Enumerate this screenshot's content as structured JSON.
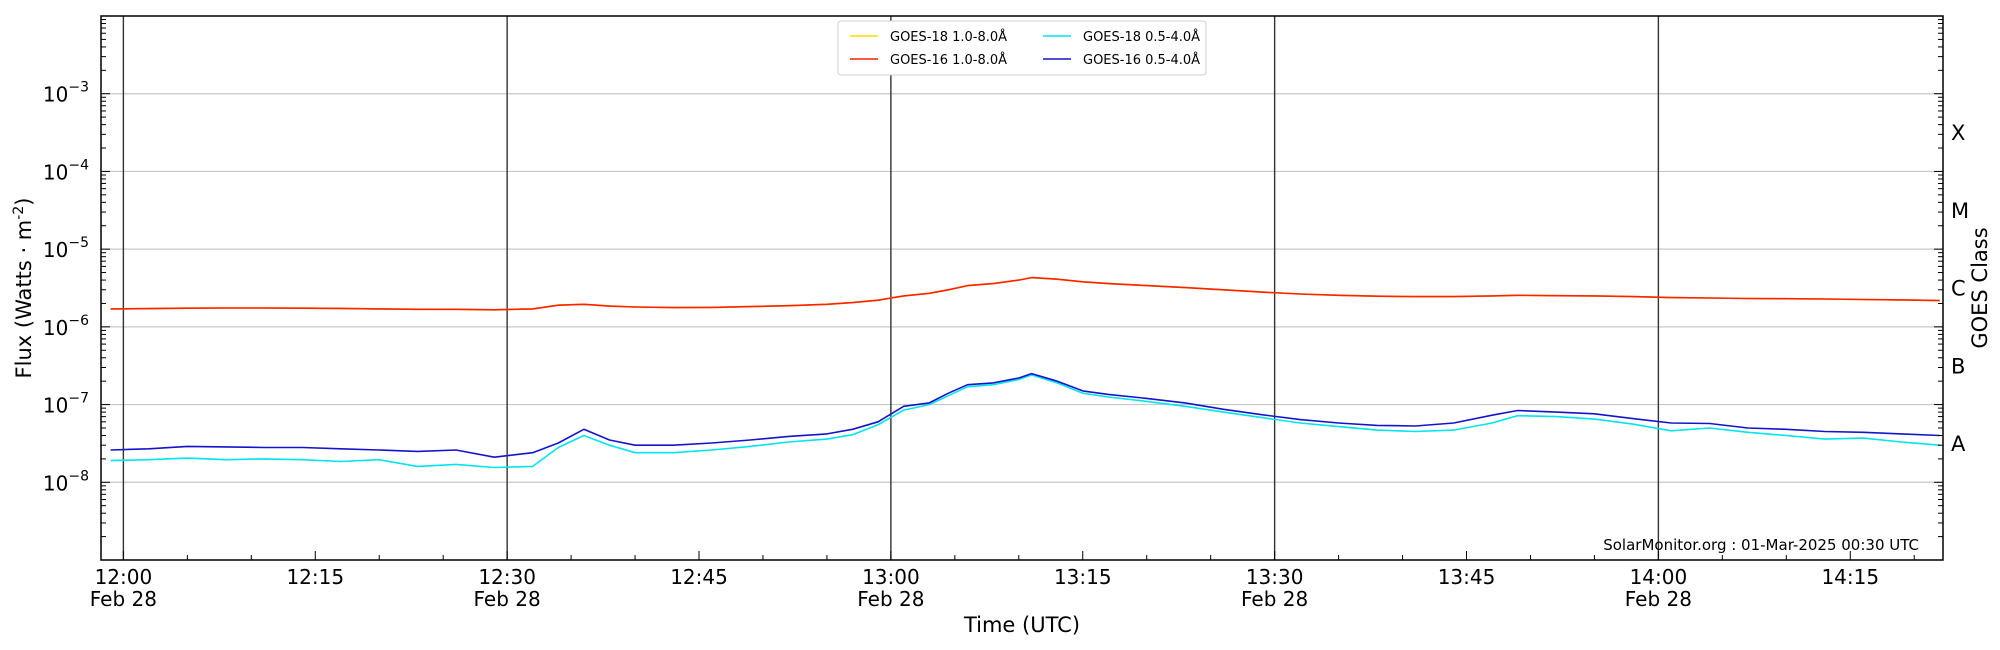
{
  "chart_data": {
    "type": "line",
    "title": "",
    "xlabel": "Time (UTC)",
    "ylabel": "Flux (Watts · m",
    "ylabel_sup": "-2",
    "ylabel_close": ")",
    "y2label": "GOES Class",
    "yscale": "log",
    "ylim": [
      1e-09,
      0.01
    ],
    "xlim": [
      "12:00",
      "14:22"
    ],
    "x_unit": "minutes after 12:00 UTC, 28-Feb-2025",
    "grid": "horizontal at each decade",
    "legend_position": "top-center",
    "credit": "SolarMonitor.org : 01-Mar-2025 00:30 UTC",
    "y_ticks": [
      {
        "value": 1e-08,
        "base": "10",
        "exp": "−8"
      },
      {
        "value": 1e-07,
        "base": "10",
        "exp": "−7"
      },
      {
        "value": 1e-06,
        "base": "10",
        "exp": "−6"
      },
      {
        "value": 1e-05,
        "base": "10",
        "exp": "−5"
      },
      {
        "value": 0.0001,
        "base": "10",
        "exp": "−4"
      },
      {
        "value": 0.001,
        "base": "10",
        "exp": "−3"
      }
    ],
    "x_ticks": [
      {
        "x": 0,
        "time": "12:00",
        "date": "Feb 28"
      },
      {
        "x": 15,
        "time": "12:15",
        "date": ""
      },
      {
        "x": 30,
        "time": "12:30",
        "date": "Feb 28"
      },
      {
        "x": 45,
        "time": "12:45",
        "date": ""
      },
      {
        "x": 60,
        "time": "13:00",
        "date": "Feb 28"
      },
      {
        "x": 75,
        "time": "13:15",
        "date": ""
      },
      {
        "x": 90,
        "time": "13:30",
        "date": "Feb 28"
      },
      {
        "x": 105,
        "time": "13:45",
        "date": ""
      },
      {
        "x": 120,
        "time": "14:00",
        "date": "Feb 28"
      },
      {
        "x": 135,
        "time": "14:15",
        "date": ""
      }
    ],
    "vlines": [
      0,
      30,
      60,
      90,
      120
    ],
    "goes_classes": [
      {
        "label": "A",
        "value": 3.2e-08
      },
      {
        "label": "B",
        "value": 3.2e-07
      },
      {
        "label": "C",
        "value": 3.2e-06
      },
      {
        "label": "M",
        "value": 3.2e-05
      },
      {
        "label": "X",
        "value": 0.00032
      }
    ],
    "x": [
      -1,
      2,
      5,
      8,
      11,
      14,
      17,
      20,
      23,
      26,
      29,
      32,
      34,
      36,
      38,
      40,
      43,
      46,
      49,
      52,
      55,
      57,
      59,
      61,
      63,
      64.5,
      66,
      68,
      70,
      71,
      73,
      75,
      77,
      80,
      83,
      86,
      89,
      92,
      95,
      98,
      101,
      104,
      107,
      109,
      112,
      115,
      118,
      121,
      124,
      127,
      130,
      133,
      136,
      139,
      142
    ],
    "series": [
      {
        "name": "GOES-18 1.0-8.0Å",
        "color": "#ffd700",
        "values": [
          1.7e-06,
          1.72e-06,
          1.74e-06,
          1.75e-06,
          1.75e-06,
          1.74e-06,
          1.73e-06,
          1.7e-06,
          1.68e-06,
          1.68e-06,
          1.66e-06,
          1.7e-06,
          1.9e-06,
          1.95e-06,
          1.85e-06,
          1.8e-06,
          1.77e-06,
          1.78e-06,
          1.82e-06,
          1.87e-06,
          1.95e-06,
          2.05e-06,
          2.2e-06,
          2.5e-06,
          2.7e-06,
          3e-06,
          3.4e-06,
          3.6e-06,
          4e-06,
          4.3e-06,
          4.1e-06,
          3.8e-06,
          3.6e-06,
          3.4e-06,
          3.2e-06,
          3e-06,
          2.8e-06,
          2.65e-06,
          2.55e-06,
          2.48e-06,
          2.45e-06,
          2.45e-06,
          2.5e-06,
          2.55e-06,
          2.52e-06,
          2.5e-06,
          2.45e-06,
          2.38e-06,
          2.35e-06,
          2.32e-06,
          2.3e-06,
          2.28e-06,
          2.25e-06,
          2.22e-06,
          2.18e-06
        ]
      },
      {
        "name": "GOES-16 1.0-8.0Å",
        "color": "#ff2200",
        "values": [
          1.7e-06,
          1.72e-06,
          1.74e-06,
          1.75e-06,
          1.75e-06,
          1.74e-06,
          1.73e-06,
          1.7e-06,
          1.68e-06,
          1.68e-06,
          1.66e-06,
          1.7e-06,
          1.9e-06,
          1.95e-06,
          1.85e-06,
          1.8e-06,
          1.77e-06,
          1.78e-06,
          1.82e-06,
          1.87e-06,
          1.95e-06,
          2.05e-06,
          2.2e-06,
          2.5e-06,
          2.7e-06,
          3e-06,
          3.4e-06,
          3.6e-06,
          4e-06,
          4.3e-06,
          4.1e-06,
          3.8e-06,
          3.6e-06,
          3.4e-06,
          3.2e-06,
          3e-06,
          2.8e-06,
          2.65e-06,
          2.55e-06,
          2.48e-06,
          2.45e-06,
          2.45e-06,
          2.5e-06,
          2.55e-06,
          2.52e-06,
          2.5e-06,
          2.45e-06,
          2.38e-06,
          2.35e-06,
          2.32e-06,
          2.3e-06,
          2.28e-06,
          2.25e-06,
          2.22e-06,
          2.18e-06
        ]
      },
      {
        "name": "GOES-18 0.5-4.0Å",
        "color": "#00e5ee",
        "values": [
          1.9e-08,
          1.95e-08,
          2.05e-08,
          1.95e-08,
          2e-08,
          1.95e-08,
          1.85e-08,
          1.95e-08,
          1.6e-08,
          1.7e-08,
          1.55e-08,
          1.6e-08,
          2.8e-08,
          4e-08,
          3e-08,
          2.4e-08,
          2.4e-08,
          2.6e-08,
          2.9e-08,
          3.3e-08,
          3.6e-08,
          4.1e-08,
          5.5e-08,
          8.5e-08,
          1e-07,
          1.3e-07,
          1.7e-07,
          1.8e-07,
          2.1e-07,
          2.4e-07,
          1.9e-07,
          1.4e-07,
          1.25e-07,
          1.1e-07,
          9.5e-08,
          8e-08,
          6.8e-08,
          5.8e-08,
          5.2e-08,
          4.7e-08,
          4.5e-08,
          4.7e-08,
          5.8e-08,
          7.2e-08,
          7e-08,
          6.5e-08,
          5.6e-08,
          4.6e-08,
          5e-08,
          4.4e-08,
          4e-08,
          3.6e-08,
          3.7e-08,
          3.3e-08,
          3e-08
        ]
      },
      {
        "name": "GOES-16 0.5-4.0Å",
        "color": "#1414cc",
        "values": [
          2.6e-08,
          2.7e-08,
          2.9e-08,
          2.85e-08,
          2.8e-08,
          2.8e-08,
          2.7e-08,
          2.6e-08,
          2.5e-08,
          2.6e-08,
          2.1e-08,
          2.4e-08,
          3.2e-08,
          4.8e-08,
          3.5e-08,
          3e-08,
          3e-08,
          3.2e-08,
          3.5e-08,
          3.9e-08,
          4.2e-08,
          4.8e-08,
          6e-08,
          9.5e-08,
          1.05e-07,
          1.4e-07,
          1.8e-07,
          1.9e-07,
          2.2e-07,
          2.5e-07,
          2e-07,
          1.5e-07,
          1.35e-07,
          1.2e-07,
          1.05e-07,
          8.7e-08,
          7.4e-08,
          6.4e-08,
          5.8e-08,
          5.4e-08,
          5.3e-08,
          5.8e-08,
          7.3e-08,
          8.4e-08,
          8e-08,
          7.6e-08,
          6.6e-08,
          5.8e-08,
          5.7e-08,
          5e-08,
          4.8e-08,
          4.5e-08,
          4.4e-08,
          4.2e-08,
          4e-08
        ]
      }
    ]
  }
}
